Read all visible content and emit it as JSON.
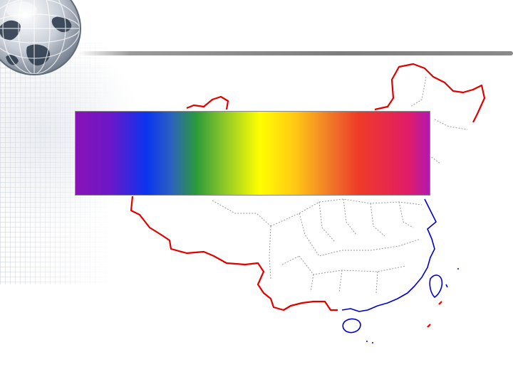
{
  "slide": {
    "decorations": [
      "globe-icon",
      "grid-pattern",
      "header-divider"
    ],
    "map": {
      "subject": "china-map",
      "colors": {
        "land_border": "#e10000",
        "coastline": "#0000cc",
        "province_lines": "#9a9a9a"
      }
    },
    "spectrum_bar": {
      "colors": [
        "#8a12b8",
        "#0a34f0",
        "#2a9a3a",
        "#ffff00",
        "#ffc814",
        "#ee3a28",
        "#e01c68",
        "#b21ab0"
      ]
    }
  }
}
